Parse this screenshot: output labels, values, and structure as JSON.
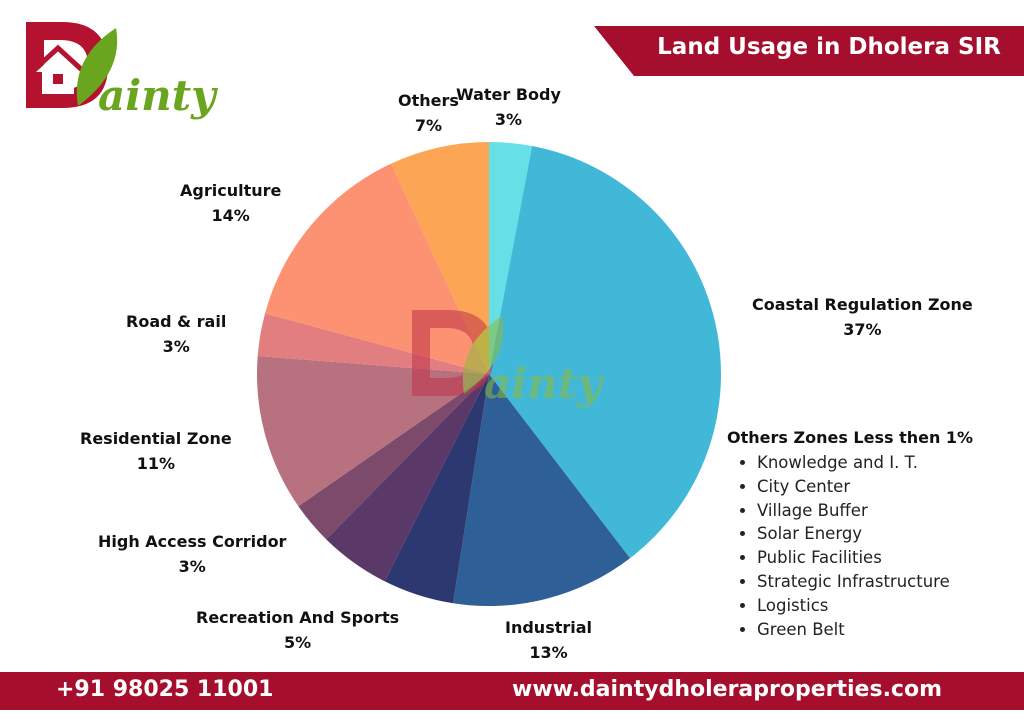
{
  "brand": {
    "name": "ainty",
    "color_red": "#b5122f",
    "color_green": "#6aa51f"
  },
  "header": {
    "title": "Land Usage in Dholera SIR",
    "color": "#a50f2d"
  },
  "chart_data": {
    "type": "pie",
    "title": "Land Usage in Dholera SIR",
    "start": "12 o'clock",
    "direction": "clockwise",
    "slices": [
      {
        "label": "Water Body",
        "value": 3,
        "value_label": "3%",
        "color": "#66e0e6"
      },
      {
        "label": "Coastal Regulation Zone",
        "value": 37,
        "value_label": "37%",
        "color": "#42b8d8"
      },
      {
        "label": "Industrial",
        "value": 13,
        "value_label": "13%",
        "color": "#2e5f96"
      },
      {
        "label": "",
        "value": 5,
        "value_label": "",
        "color": "#2d3870"
      },
      {
        "label": "Recreation And Sports",
        "value": 5,
        "value_label": "5%",
        "color": "#5a3868"
      },
      {
        "label": "High Access Corridor",
        "value": 3,
        "value_label": "3%",
        "color": "#7c4a6a"
      },
      {
        "label": "Residential Zone",
        "value": 11,
        "value_label": "11%",
        "color": "#b8717f"
      },
      {
        "label": "Road & rail",
        "value": 3,
        "value_label": "3%",
        "color": "#e27d80"
      },
      {
        "label": "Agriculture",
        "value": 14,
        "value_label": "14%",
        "color": "#fc9271"
      },
      {
        "label": "Others",
        "value": 7,
        "value_label": "7%",
        "color": "#fca655"
      }
    ]
  },
  "others_zones": {
    "heading": "Others Zones Less then 1%",
    "items": [
      "Knowledge and I. T.",
      "City Center",
      "Village Buffer",
      "Solar Energy",
      "Public Facilities",
      "Strategic Infrastructure",
      "Logistics",
      "Green Belt"
    ]
  },
  "footer": {
    "phone": "+91 98025 11001",
    "website": "www.daintydholeraproperties.com"
  }
}
